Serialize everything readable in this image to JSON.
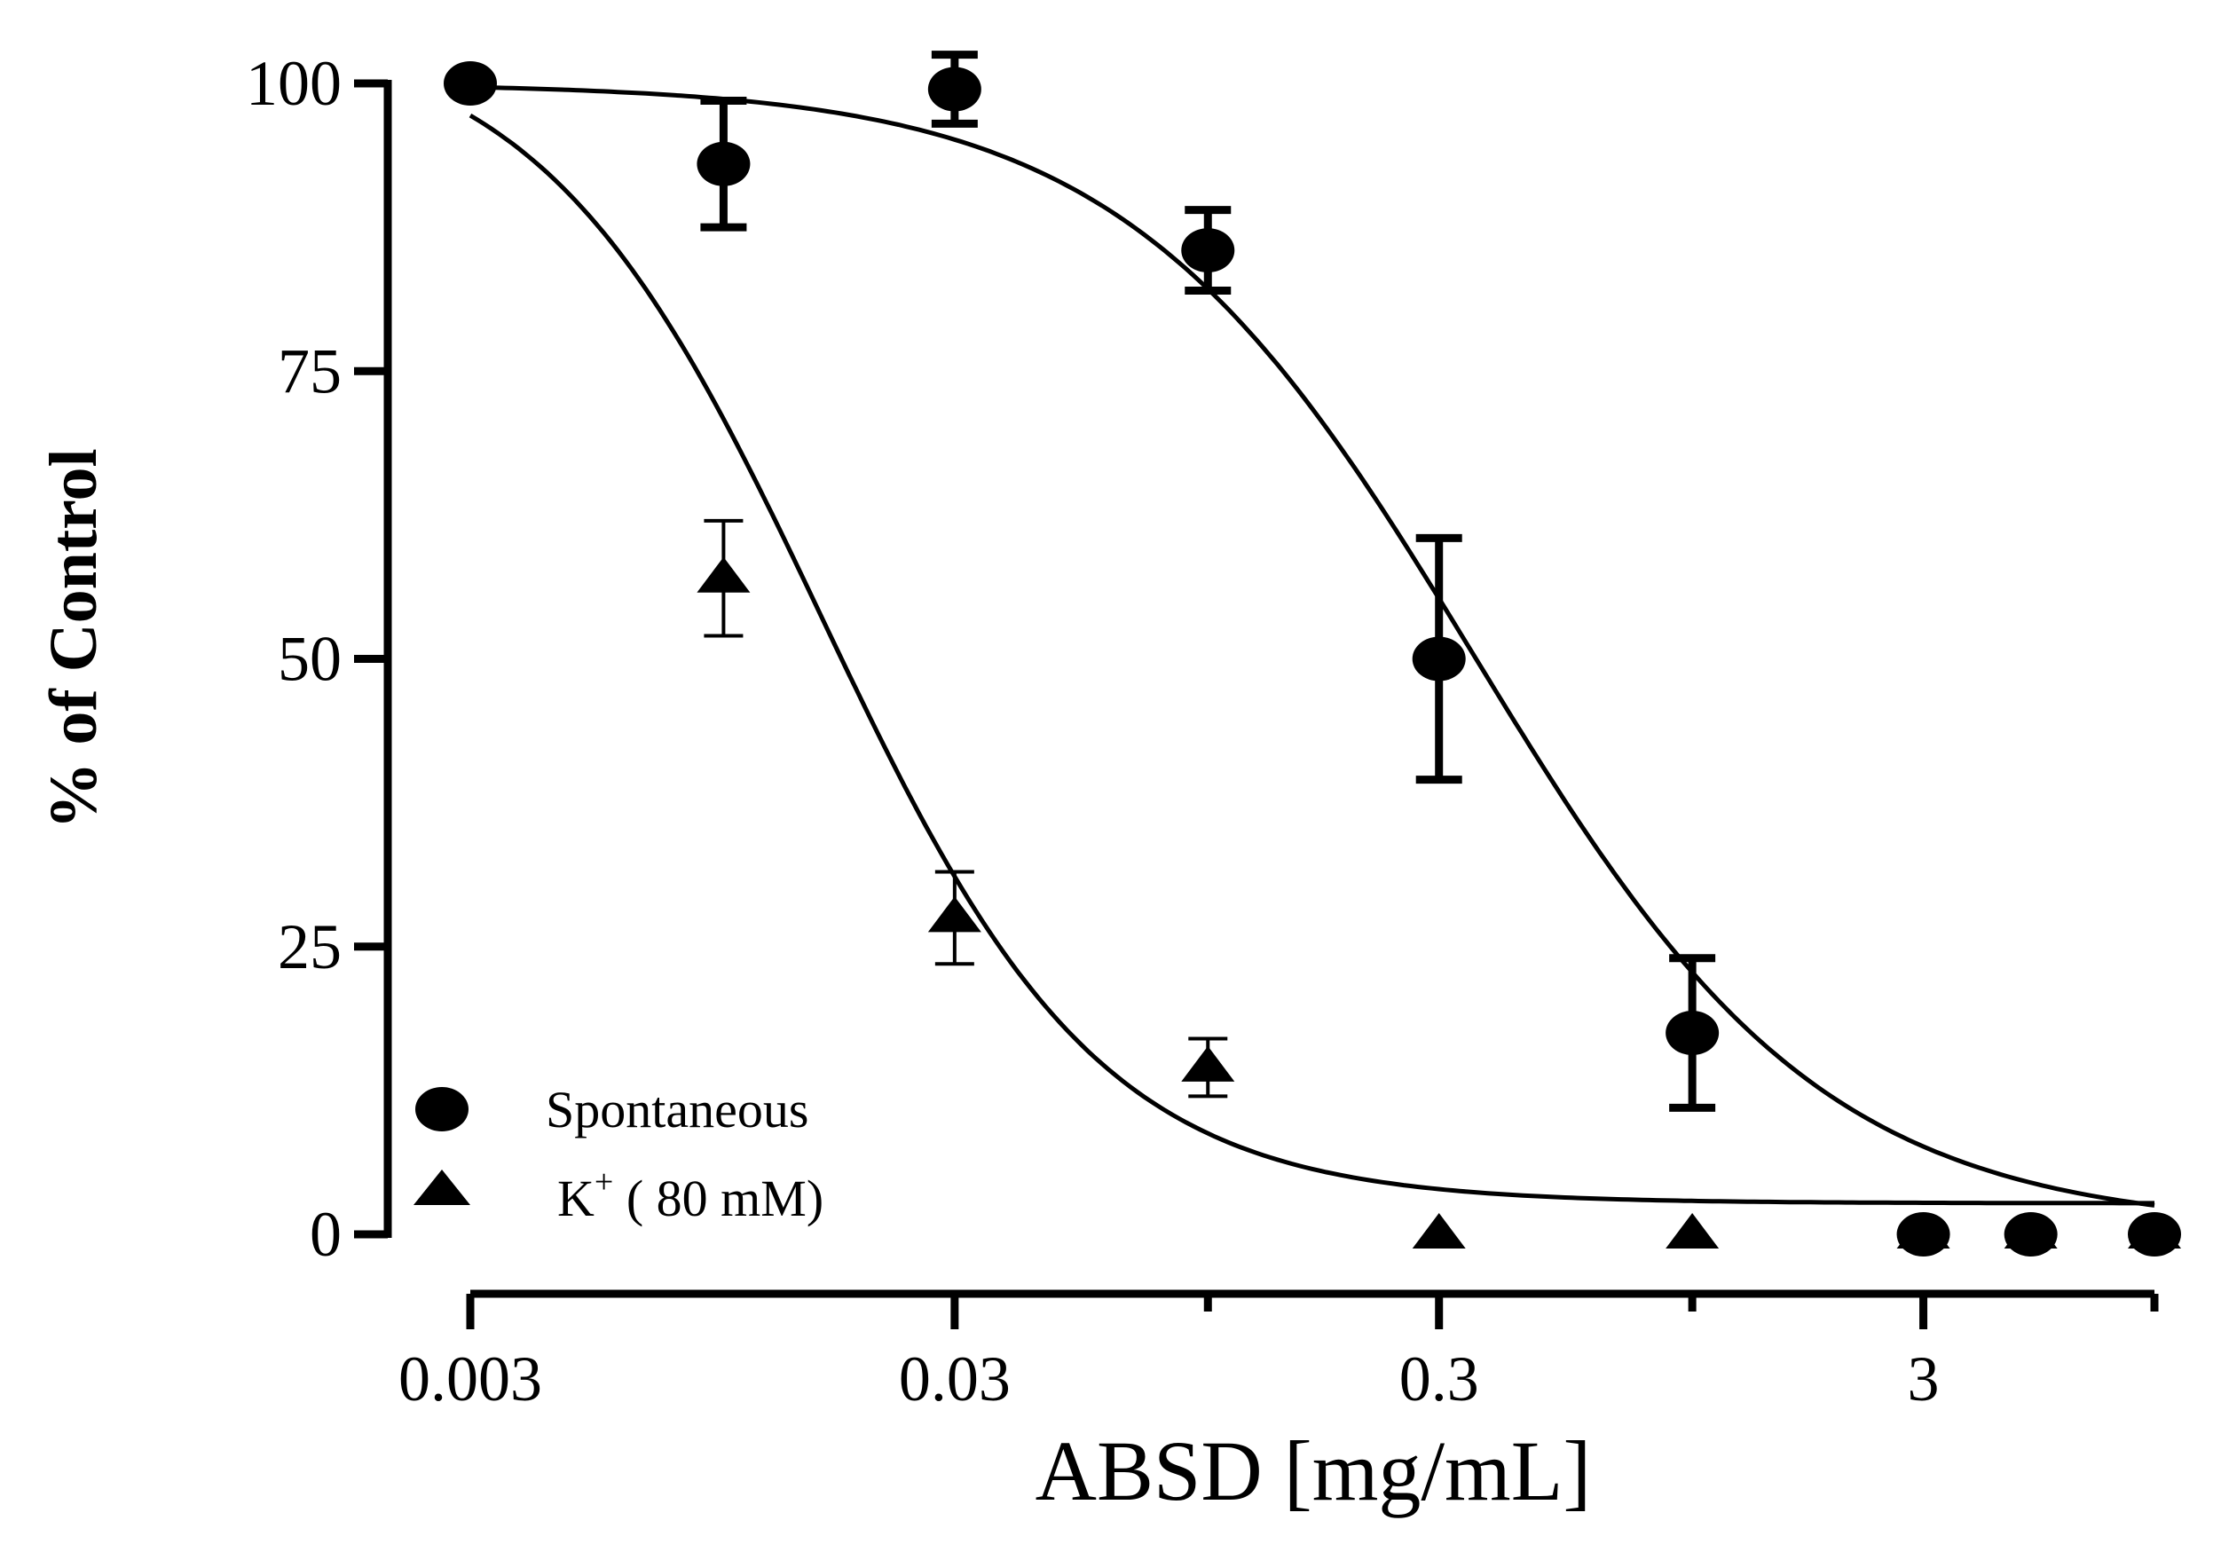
{
  "chart_data": {
    "type": "scatter",
    "title": "",
    "xlabel": "ABSD [mg/mL]",
    "ylabel": "% of Control",
    "x_scale": "log10",
    "xlim": [
      0.003,
      9
    ],
    "ylim": [
      0,
      100
    ],
    "x_ticks": [
      {
        "value": 0.003,
        "label": "0.003"
      },
      {
        "value": 0.03,
        "label": "0.03"
      },
      {
        "value": 0.3,
        "label": "0.3"
      },
      {
        "value": 3,
        "label": "3"
      }
    ],
    "x_minor_ticks": [
      0.1,
      1,
      9
    ],
    "y_ticks": [
      {
        "value": 0,
        "label": "0"
      },
      {
        "value": 25,
        "label": "25"
      },
      {
        "value": 50,
        "label": "50"
      },
      {
        "value": 75,
        "label": "75"
      },
      {
        "value": 100,
        "label": "100"
      }
    ],
    "legend_position": "bottom-left",
    "series": [
      {
        "name": "Spontaneous",
        "marker": "circle",
        "points": [
          {
            "x": 0.003,
            "y": 100,
            "err": 0
          },
          {
            "x": 0.01,
            "y": 93,
            "err": 5.5
          },
          {
            "x": 0.03,
            "y": 99.5,
            "err": 3
          },
          {
            "x": 0.1,
            "y": 85.5,
            "err": 3.5
          },
          {
            "x": 0.3,
            "y": 50,
            "err": 10.5
          },
          {
            "x": 1,
            "y": 17.5,
            "err": 6.5
          },
          {
            "x": 3,
            "y": 0,
            "err": 0
          },
          {
            "x": 5,
            "y": 0,
            "err": 0
          },
          {
            "x": 9,
            "y": 0,
            "err": 0
          }
        ],
        "fit": {
          "top": 100,
          "bottom": 0.5,
          "log_ec50": -0.45,
          "hill": -1.2,
          "x_from": 0.003,
          "x_to": 9
        }
      },
      {
        "name": "K+ ( 80 mM)",
        "marker": "triangle",
        "points": [
          {
            "x": 0.01,
            "y": 57,
            "err": 5
          },
          {
            "x": 0.03,
            "y": 27.5,
            "err": 4
          },
          {
            "x": 0.1,
            "y": 14.5,
            "err": 2.5
          },
          {
            "x": 0.3,
            "y": 0,
            "err": 0
          },
          {
            "x": 1,
            "y": 0,
            "err": 0
          },
          {
            "x": 3,
            "y": 0,
            "err": 0
          },
          {
            "x": 5,
            "y": 0,
            "err": 0
          },
          {
            "x": 9,
            "y": 0,
            "err": 0
          }
        ],
        "fit": {
          "top": 105,
          "bottom": 2.7,
          "log_ec50": -1.8,
          "hill": -1.5,
          "x_from": 0.003,
          "x_to": 9
        }
      }
    ]
  },
  "legend": {
    "spontaneous_label": "Spontaneous",
    "k_label_base": "K",
    "k_label_sup": "+",
    "k_label_rest": " ( 80 mM)"
  }
}
